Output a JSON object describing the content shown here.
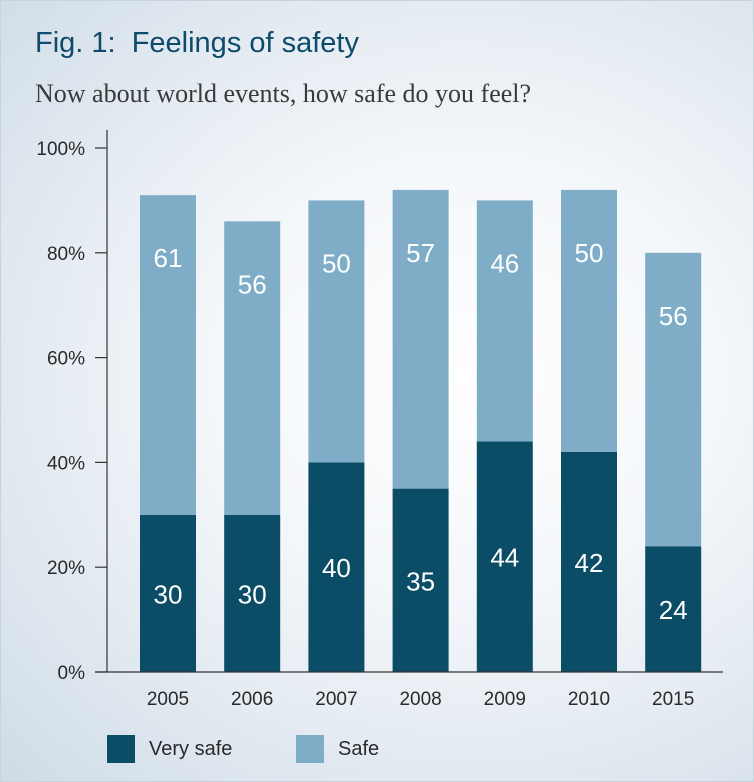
{
  "title": "Fig. 1:  Feelings of safety",
  "subtitle": "Now about world events, how safe do you feel?",
  "colors": {
    "very_safe": "#0b4d66",
    "safe": "#7fadc7",
    "axis": "#333333",
    "text": "#2a2a2a"
  },
  "legend": [
    {
      "label": "Very safe",
      "color": "#0b4d66"
    },
    {
      "label": "Safe",
      "color": "#7fadc7"
    }
  ],
  "chart_data": {
    "type": "bar",
    "stacked": true,
    "categories": [
      "2005",
      "2006",
      "2007",
      "2008",
      "2009",
      "2010",
      "2015"
    ],
    "series": [
      {
        "name": "Very safe",
        "values": [
          30,
          30,
          40,
          35,
          44,
          42,
          24
        ]
      },
      {
        "name": "Safe",
        "values": [
          61,
          56,
          50,
          57,
          46,
          50,
          56
        ]
      }
    ],
    "yticks": [
      "0%",
      "20%",
      "40%",
      "60%",
      "80%",
      "100%"
    ],
    "ylim": [
      0,
      100
    ],
    "grid": false,
    "legend_position": "bottom-left"
  }
}
